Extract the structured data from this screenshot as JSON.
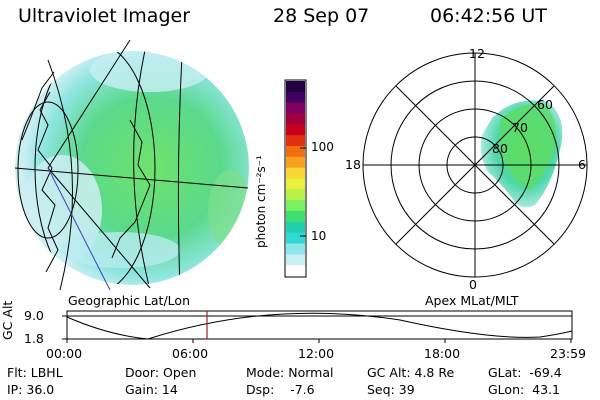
{
  "header": {
    "instrument": "Ultraviolet Imager",
    "date": "28 Sep 07",
    "time": "06:42:56 UT"
  },
  "geo_panel": {
    "caption": "Geographic Lat/Lon"
  },
  "colorbar": {
    "unit_label": "photon cm⁻²s⁻¹",
    "tick_100": "100",
    "tick_10": "10",
    "scale": "log",
    "colors": [
      "#ffffff",
      "#c8f0f4",
      "#8ee6ea",
      "#30d8d6",
      "#22d0b0",
      "#40e070",
      "#78f060",
      "#b8f048",
      "#e8f040",
      "#f8d838",
      "#f8a020",
      "#f07010",
      "#e03010",
      "#c8001c",
      "#a00040",
      "#800060",
      "#400060",
      "#200040"
    ]
  },
  "polar_panel": {
    "caption": "Apex MLat/MLT",
    "mlt_top": "12",
    "mlt_left": "18",
    "mlt_right": "6",
    "mlt_bottom": "0",
    "lat_60": "60",
    "lat_70": "70",
    "lat_80": "80"
  },
  "timeline": {
    "axis_label": "GC Alt",
    "y_top": "9.0",
    "y_bottom": "1.8",
    "x_ticks": [
      "00:00",
      "06:00",
      "12:00",
      "18:00",
      "23:59"
    ],
    "marker_time": "06:42:56",
    "marker_color": "#a0202a"
  },
  "status": {
    "flt": "Flt: LBHL",
    "ip": "IP: 36.0",
    "door": "Door: Open",
    "gain": "Gain: 14",
    "mode": "Mode: Normal",
    "dsp": "Dsp:    -7.6",
    "gc_alt": "GC Alt: 4.8 Re",
    "seq": "Seq: 39",
    "glat": "GLat:  -69.4",
    "glon": "GLon:  43.1"
  }
}
